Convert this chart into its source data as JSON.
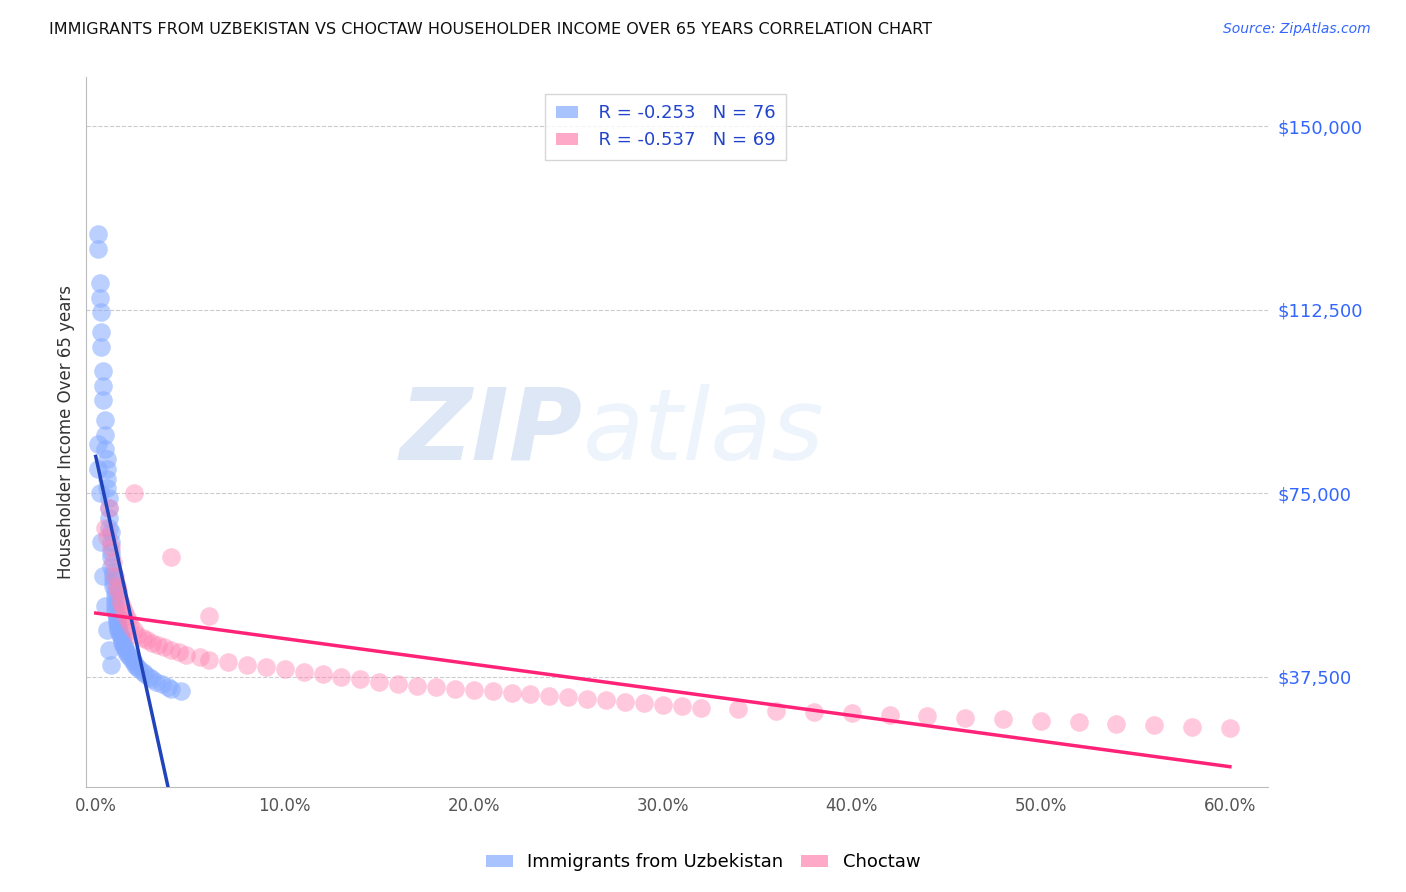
{
  "title": "IMMIGRANTS FROM UZBEKISTAN VS CHOCTAW HOUSEHOLDER INCOME OVER 65 YEARS CORRELATION CHART",
  "source": "Source: ZipAtlas.com",
  "ylabel": "Householder Income Over 65 years",
  "xlabel_ticks": [
    "0.0%",
    "10.0%",
    "20.0%",
    "30.0%",
    "40.0%",
    "50.0%",
    "60.0%"
  ],
  "xlabel_vals": [
    0.0,
    0.1,
    0.2,
    0.3,
    0.4,
    0.5,
    0.6
  ],
  "ytick_labels": [
    "$37,500",
    "$75,000",
    "$112,500",
    "$150,000"
  ],
  "ytick_vals": [
    37500,
    75000,
    112500,
    150000
  ],
  "ylim": [
    15000,
    160000
  ],
  "xlim": [
    -0.005,
    0.62
  ],
  "legend_blue_r": "-0.253",
  "legend_blue_n": "76",
  "legend_pink_r": "-0.537",
  "legend_pink_n": "69",
  "blue_color": "#85aaff",
  "pink_color": "#ff85b3",
  "blue_line_color": "#2244bb",
  "pink_line_color": "#ff2277",
  "blue_dashed_color": "#aabbdd",
  "watermark_zip": "ZIP",
  "watermark_atlas": "atlas",
  "blue_x": [
    0.001,
    0.001,
    0.002,
    0.002,
    0.003,
    0.003,
    0.003,
    0.004,
    0.004,
    0.004,
    0.005,
    0.005,
    0.005,
    0.006,
    0.006,
    0.006,
    0.006,
    0.007,
    0.007,
    0.007,
    0.007,
    0.008,
    0.008,
    0.008,
    0.008,
    0.008,
    0.009,
    0.009,
    0.009,
    0.009,
    0.01,
    0.01,
    0.01,
    0.01,
    0.01,
    0.011,
    0.011,
    0.011,
    0.011,
    0.012,
    0.012,
    0.012,
    0.013,
    0.013,
    0.014,
    0.014,
    0.014,
    0.015,
    0.015,
    0.016,
    0.016,
    0.017,
    0.018,
    0.019,
    0.02,
    0.021,
    0.022,
    0.023,
    0.025,
    0.026,
    0.028,
    0.03,
    0.032,
    0.035,
    0.038,
    0.04,
    0.045,
    0.001,
    0.001,
    0.002,
    0.003,
    0.004,
    0.005,
    0.006,
    0.007,
    0.008
  ],
  "blue_y": [
    128000,
    125000,
    118000,
    115000,
    112000,
    108000,
    105000,
    100000,
    97000,
    94000,
    90000,
    87000,
    84000,
    82000,
    80000,
    78000,
    76000,
    74000,
    72000,
    70000,
    68000,
    67000,
    65000,
    63000,
    62000,
    60000,
    59000,
    58000,
    57000,
    56000,
    55000,
    54000,
    53000,
    52000,
    51000,
    50000,
    49500,
    49000,
    48500,
    48000,
    47500,
    47000,
    46500,
    46000,
    45500,
    45000,
    44500,
    44000,
    43500,
    43000,
    42500,
    42000,
    41500,
    41000,
    40500,
    40000,
    39500,
    39000,
    38500,
    38000,
    37500,
    37000,
    36500,
    36000,
    35500,
    35000,
    34500,
    85000,
    80000,
    75000,
    65000,
    58000,
    52000,
    47000,
    43000,
    40000
  ],
  "pink_x": [
    0.005,
    0.006,
    0.007,
    0.008,
    0.009,
    0.01,
    0.011,
    0.012,
    0.013,
    0.014,
    0.015,
    0.016,
    0.017,
    0.018,
    0.02,
    0.022,
    0.025,
    0.027,
    0.03,
    0.033,
    0.036,
    0.04,
    0.044,
    0.048,
    0.055,
    0.06,
    0.07,
    0.08,
    0.09,
    0.1,
    0.11,
    0.12,
    0.13,
    0.14,
    0.15,
    0.16,
    0.17,
    0.18,
    0.19,
    0.2,
    0.21,
    0.22,
    0.23,
    0.24,
    0.25,
    0.26,
    0.27,
    0.28,
    0.29,
    0.3,
    0.31,
    0.32,
    0.34,
    0.36,
    0.38,
    0.4,
    0.42,
    0.44,
    0.46,
    0.48,
    0.5,
    0.52,
    0.54,
    0.56,
    0.58,
    0.6,
    0.02,
    0.04,
    0.06
  ],
  "pink_y": [
    68000,
    66000,
    72000,
    64000,
    61000,
    58000,
    56000,
    55000,
    53000,
    52000,
    51000,
    50000,
    49000,
    48000,
    47000,
    46000,
    45500,
    45000,
    44500,
    44000,
    43500,
    43000,
    42500,
    42000,
    41500,
    41000,
    40500,
    40000,
    39500,
    39000,
    38500,
    38000,
    37500,
    37000,
    36500,
    36000,
    35700,
    35400,
    35100,
    34800,
    34500,
    34200,
    33900,
    33600,
    33300,
    33000,
    32700,
    32400,
    32100,
    31800,
    31500,
    31200,
    30900,
    30600,
    30300,
    30000,
    29700,
    29400,
    29100,
    28800,
    28500,
    28200,
    27900,
    27600,
    27300,
    27000,
    75000,
    62000,
    50000
  ]
}
